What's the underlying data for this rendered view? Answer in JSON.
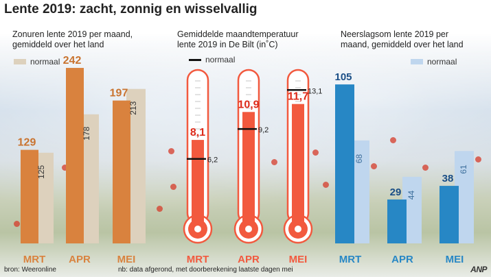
{
  "title": "Lente 2019: zacht, zonnig en wisselvallig",
  "source": "bron: Weeronline",
  "note": "nb: data afgerond, met doorberekening laatste dagen mei",
  "logo": "ANP",
  "colors": {
    "sun": "#d9823e",
    "sun_normal": "#ddd1bd",
    "temp": "#f2593e",
    "temp_value": "#dd2a1a",
    "rain": "#2787c5",
    "rain_normal": "#bfd6ee",
    "rain_value": "#1a4e86",
    "sun_value": "#c9732f",
    "month_label": "#d9823e"
  },
  "chart_data": [
    {
      "type": "bar",
      "title": "Zonuren lente 2019 per maand, gemiddeld over het land",
      "title_lines": [
        "Zonuren lente 2019 per maand,",
        "gemiddeld over het land"
      ],
      "categories": [
        "MRT",
        "APR",
        "MEI"
      ],
      "series": [
        {
          "values": [
            129,
            242,
            197
          ]
        },
        {
          "name": "normaal",
          "values": [
            125,
            178,
            213
          ]
        }
      ],
      "ylim": [
        0,
        260
      ]
    },
    {
      "type": "bar",
      "title": "Gemiddelde maandtemperatuur lente 2019 in De Bilt (in˚C)",
      "title_lines": [
        "Gemiddelde maandtemperatuur",
        "lente 2019 in De Bilt (in˚C)"
      ],
      "categories": [
        "MRT",
        "APR",
        "MEI"
      ],
      "values": [
        8.1,
        10.9,
        11.7
      ],
      "value_labels": [
        "8,1",
        "10,9",
        "11,7"
      ],
      "normal_name": "normaal",
      "normal_values": [
        6.2,
        9.2,
        13.1
      ],
      "normal_labels": [
        "6,2",
        "9,2",
        "13,1"
      ],
      "ylim": [
        0,
        16
      ]
    },
    {
      "type": "bar",
      "title": "Neerslagsom lente 2019 per maand, gemiddeld over het land",
      "title_lines": [
        "Neerslagsom lente 2019 per",
        "maand, gemiddeld over het land"
      ],
      "categories": [
        "MRT",
        "APR",
        "MEI"
      ],
      "series": [
        {
          "values": [
            105,
            29,
            38
          ]
        },
        {
          "name": "normaal",
          "values": [
            68,
            44,
            61
          ]
        }
      ],
      "ylim": [
        0,
        120
      ]
    }
  ]
}
